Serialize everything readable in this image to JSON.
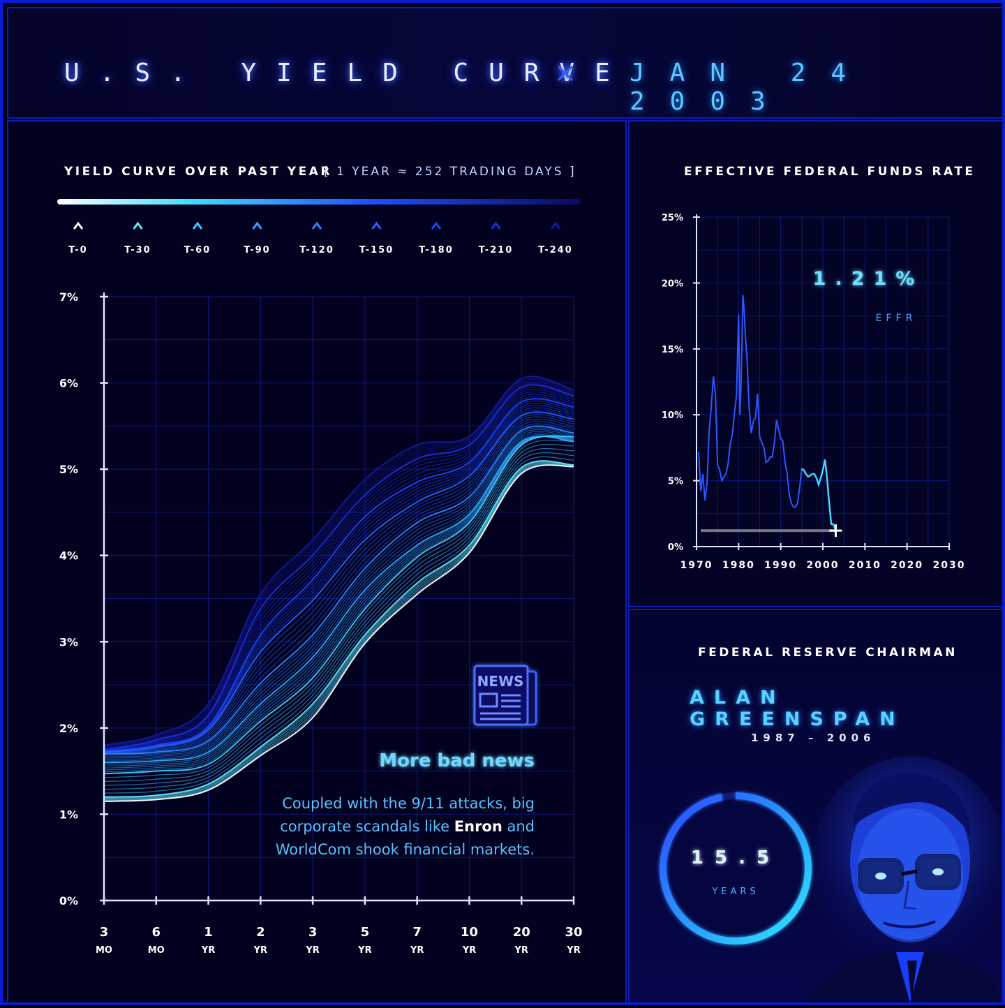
{
  "header": {
    "title": "U.S. YIELD CURVE",
    "separator": "×",
    "date": "JAN 24 2003"
  },
  "yield_panel": {
    "title": "YIELD CURVE OVER PAST YEAR",
    "subtitle": "[ 1 YEAR ≈ 252 TRADING DAYS ]",
    "legend": [
      "T-0",
      "T-30",
      "T-60",
      "T-90",
      "T-120",
      "T-150",
      "T-180",
      "T-210",
      "T-240"
    ],
    "legend_colors": [
      "#ffffff",
      "#5fe8ff",
      "#3fd0ff",
      "#2eaaff",
      "#2a86ff",
      "#2464ff",
      "#1e46ff",
      "#1a2fe0",
      "#141a9a"
    ],
    "annotation": {
      "icon": "newspaper-icon",
      "icon_text": "NEWS",
      "headline": "More bad news",
      "body_1": "Coupled with the 9/11 attacks, big",
      "body_2_pre": "corporate scandals like ",
      "body_2_bold": "Enron",
      "body_2_post": " and",
      "body_3": "WorldCom shook financial markets."
    }
  },
  "effr_panel": {
    "title": "EFFECTIVE FEDERAL FUNDS RATE",
    "current_value": "1.21%",
    "current_label": "EFFR"
  },
  "chair_panel": {
    "title": "FEDERAL RESERVE CHAIRMAN",
    "name": "ALAN GREENSPAN",
    "term": "1987 – 2006",
    "tenure_value": "15.5",
    "tenure_unit": "YEARS",
    "tenure_fraction": 0.97,
    "portrait_icon": "portrait-photo"
  },
  "chart_data": [
    {
      "type": "line",
      "title": "YIELD CURVE OVER PAST YEAR",
      "x_categories": [
        {
          "top": "3",
          "bottom": "MO"
        },
        {
          "top": "6",
          "bottom": "MO"
        },
        {
          "top": "1",
          "bottom": "YR"
        },
        {
          "top": "2",
          "bottom": "YR"
        },
        {
          "top": "3",
          "bottom": "YR"
        },
        {
          "top": "5",
          "bottom": "YR"
        },
        {
          "top": "7",
          "bottom": "YR"
        },
        {
          "top": "10",
          "bottom": "YR"
        },
        {
          "top": "20",
          "bottom": "YR"
        },
        {
          "top": "30",
          "bottom": "YR"
        }
      ],
      "y_ticks": [
        "0%",
        "1%",
        "2%",
        "3%",
        "4%",
        "5%",
        "6%",
        "7%"
      ],
      "ylim": [
        0,
        7
      ],
      "series": [
        {
          "name": "T-0",
          "values": [
            1.15,
            1.17,
            1.28,
            1.68,
            2.12,
            2.98,
            3.55,
            4.03,
            4.95,
            5.03
          ]
        },
        {
          "name": "T-30",
          "values": [
            1.2,
            1.22,
            1.35,
            1.78,
            2.28,
            3.08,
            3.68,
            4.12,
            5.02,
            5.05
          ]
        },
        {
          "name": "T-60",
          "values": [
            1.47,
            1.5,
            1.58,
            2.08,
            2.58,
            3.38,
            3.98,
            4.38,
            5.28,
            5.38
          ]
        },
        {
          "name": "T-90",
          "values": [
            1.6,
            1.62,
            1.72,
            2.28,
            2.82,
            3.6,
            4.12,
            4.48,
            5.32,
            5.32
          ]
        },
        {
          "name": "T-120",
          "values": [
            1.7,
            1.72,
            1.85,
            2.52,
            3.08,
            3.85,
            4.38,
            4.68,
            5.45,
            5.42
          ]
        },
        {
          "name": "T-150",
          "values": [
            1.72,
            1.78,
            1.98,
            2.88,
            3.48,
            4.18,
            4.62,
            4.92,
            5.62,
            5.58
          ]
        },
        {
          "name": "T-180",
          "values": [
            1.73,
            1.8,
            2.02,
            3.08,
            3.72,
            4.45,
            4.85,
            5.08,
            5.78,
            5.72
          ]
        },
        {
          "name": "T-210",
          "values": [
            1.75,
            1.86,
            2.15,
            3.38,
            4.0,
            4.7,
            5.12,
            5.28,
            5.95,
            5.85
          ]
        },
        {
          "name": "T-240",
          "values": [
            1.8,
            1.92,
            2.28,
            3.55,
            4.18,
            4.88,
            5.28,
            5.38,
            6.05,
            5.92
          ]
        }
      ]
    },
    {
      "type": "line",
      "title": "EFFECTIVE FEDERAL FUNDS RATE",
      "x_ticks": [
        "1970",
        "1980",
        "1990",
        "2000",
        "2010",
        "2020",
        "2030"
      ],
      "xlim": [
        1970,
        2030
      ],
      "y_ticks": [
        "0%",
        "5%",
        "10%",
        "15%",
        "20%",
        "25%"
      ],
      "ylim": [
        0,
        25
      ],
      "marker": {
        "x": 2003.06,
        "y": 1.21
      },
      "x": [
        1970.5,
        1971,
        1971.5,
        1972,
        1972.5,
        1973,
        1973.5,
        1974,
        1974.5,
        1975,
        1975.5,
        1976,
        1976.5,
        1977,
        1977.5,
        1978,
        1978.5,
        1979,
        1979.5,
        1980,
        1980.3,
        1980.6,
        1981,
        1981.3,
        1981.6,
        1982,
        1982.5,
        1983,
        1983.5,
        1984,
        1984.5,
        1985,
        1985.5,
        1986,
        1986.5,
        1987,
        1987.5,
        1988,
        1988.5,
        1989,
        1989.5,
        1990,
        1990.5,
        1991,
        1991.5,
        1992,
        1992.5,
        1993,
        1993.5,
        1994,
        1994.5,
        1995,
        1995.5,
        1996,
        1996.5,
        1997,
        1997.5,
        1998,
        1998.5,
        1999,
        1999.5,
        2000,
        2000.5,
        2001,
        2001.3,
        2001.6,
        2002,
        2002.5,
        2003.06
      ],
      "y": [
        7.2,
        4.2,
        5.5,
        3.5,
        4.8,
        8.8,
        10.6,
        12.9,
        11.5,
        6.2,
        5.8,
        5.0,
        5.3,
        5.5,
        6.3,
        7.8,
        8.5,
        10.1,
        11.5,
        17.6,
        10.0,
        12.5,
        19.1,
        18.0,
        16.0,
        14.2,
        10.5,
        8.6,
        9.5,
        9.8,
        11.6,
        8.3,
        7.9,
        7.5,
        6.4,
        6.5,
        6.8,
        6.8,
        7.9,
        9.6,
        8.9,
        8.2,
        8.0,
        6.4,
        5.6,
        4.0,
        3.3,
        3.0,
        3.0,
        3.3,
        4.5,
        5.9,
        5.8,
        5.5,
        5.3,
        5.4,
        5.5,
        5.5,
        5.2,
        4.7,
        5.2,
        5.8,
        6.6,
        5.2,
        4.0,
        3.0,
        1.7,
        1.7,
        1.21
      ]
    }
  ]
}
